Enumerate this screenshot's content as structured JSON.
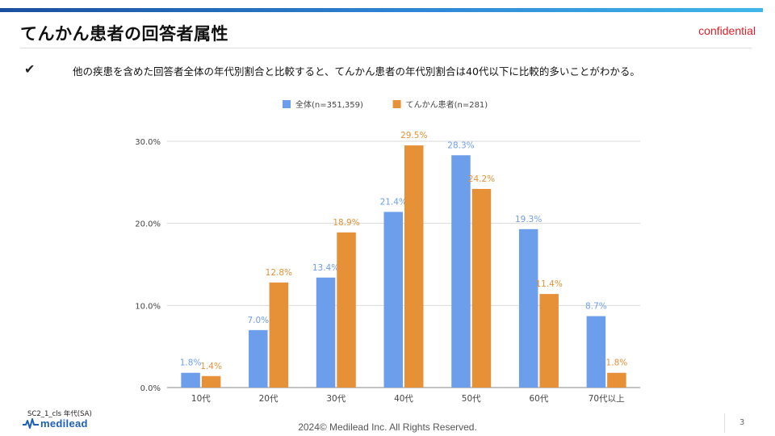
{
  "header": {
    "title": "てんかん患者の回答者属性",
    "confidential": "confidential",
    "bullet": "✔",
    "subtitle": "他の疾患を含めた回答者全体の年代別割合と比較すると、てんかん患者の年代別割合は40代以下に比較的多いことがわかる。"
  },
  "colors": {
    "series1": "#6d9eeb",
    "series2": "#e69138",
    "grid": "#d9d9d9",
    "axis": "#555555"
  },
  "chart_data": {
    "type": "bar",
    "categories": [
      "10代",
      "20代",
      "30代",
      "40代",
      "50代",
      "60代",
      "70代以上"
    ],
    "series": [
      {
        "name": "全体(n=351,359)",
        "values": [
          1.8,
          7.0,
          13.4,
          21.4,
          28.3,
          19.3,
          8.7
        ],
        "labels": [
          "1.8%",
          "7.0%",
          "13.4%",
          "21.4%",
          "28.3%",
          "19.3%",
          "8.7%"
        ]
      },
      {
        "name": "てんかん患者(n=281)",
        "values": [
          1.4,
          12.8,
          18.9,
          29.5,
          24.2,
          11.4,
          1.8
        ],
        "labels": [
          "1.4%",
          "12.8%",
          "18.9%",
          "29.5%",
          "24.2%",
          "11.4%",
          "1.8%"
        ]
      }
    ],
    "yticks": [
      0,
      10,
      20,
      30
    ],
    "ytick_labels": [
      "0.0%",
      "10.0%",
      "20.0%",
      "30.0%"
    ],
    "ylim": [
      0,
      30
    ],
    "legend_position": "top"
  },
  "footer": {
    "source": "SC2_1_cls  年代(SA)",
    "logo": "medilead",
    "copyright": "2024© Medilead Inc. All Rights Reserved.",
    "page": "3"
  }
}
